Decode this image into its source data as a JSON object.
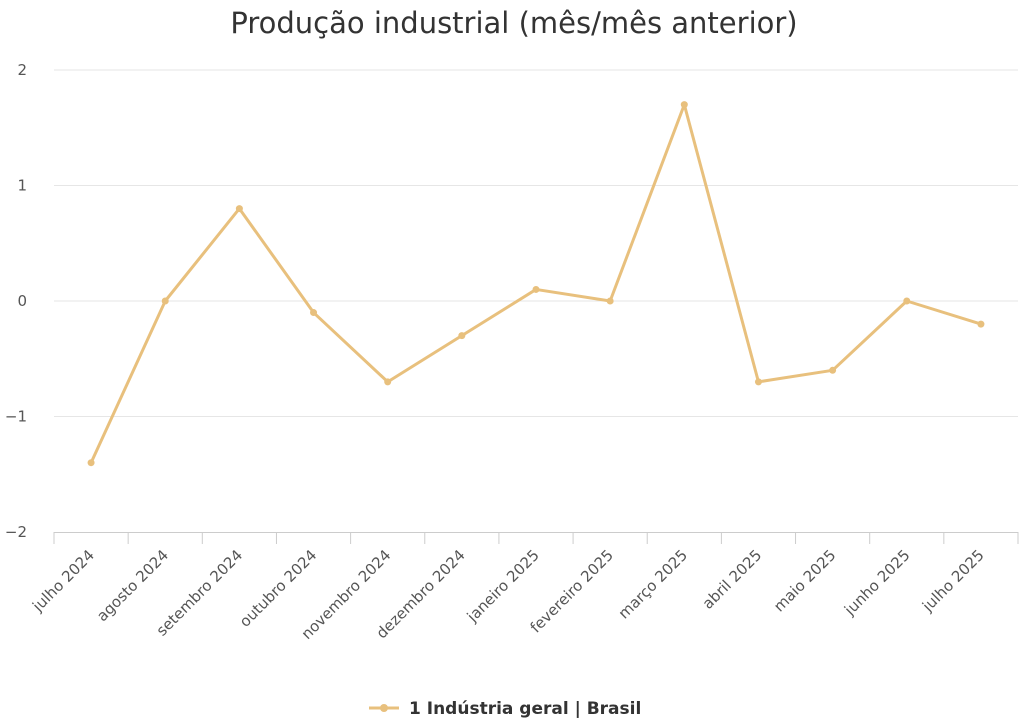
{
  "chart_data": {
    "type": "line",
    "title": "Produção industrial (mês/mês anterior)",
    "categories": [
      "julho 2024",
      "agosto 2024",
      "setembro 2024",
      "outubro 2024",
      "novembro 2024",
      "dezembro 2024",
      "janeiro 2025",
      "fevereiro 2025",
      "março 2025",
      "abril 2025",
      "maio 2025",
      "junho 2025",
      "julho 2025"
    ],
    "series": [
      {
        "name": "1 Indústria geral | Brasil",
        "color": "#e8c07d",
        "values": [
          -1.4,
          0.0,
          0.8,
          -0.1,
          -0.7,
          -0.3,
          0.1,
          0.0,
          1.7,
          -0.7,
          -0.6,
          0.0,
          -0.2
        ]
      }
    ],
    "ylim": [
      -2,
      2
    ],
    "yticks": [
      2,
      1,
      0,
      -1,
      -2
    ],
    "ytick_labels": [
      "2",
      "1",
      "0",
      "−1",
      "−2"
    ],
    "grid": true,
    "legend_position": "bottom-center"
  }
}
